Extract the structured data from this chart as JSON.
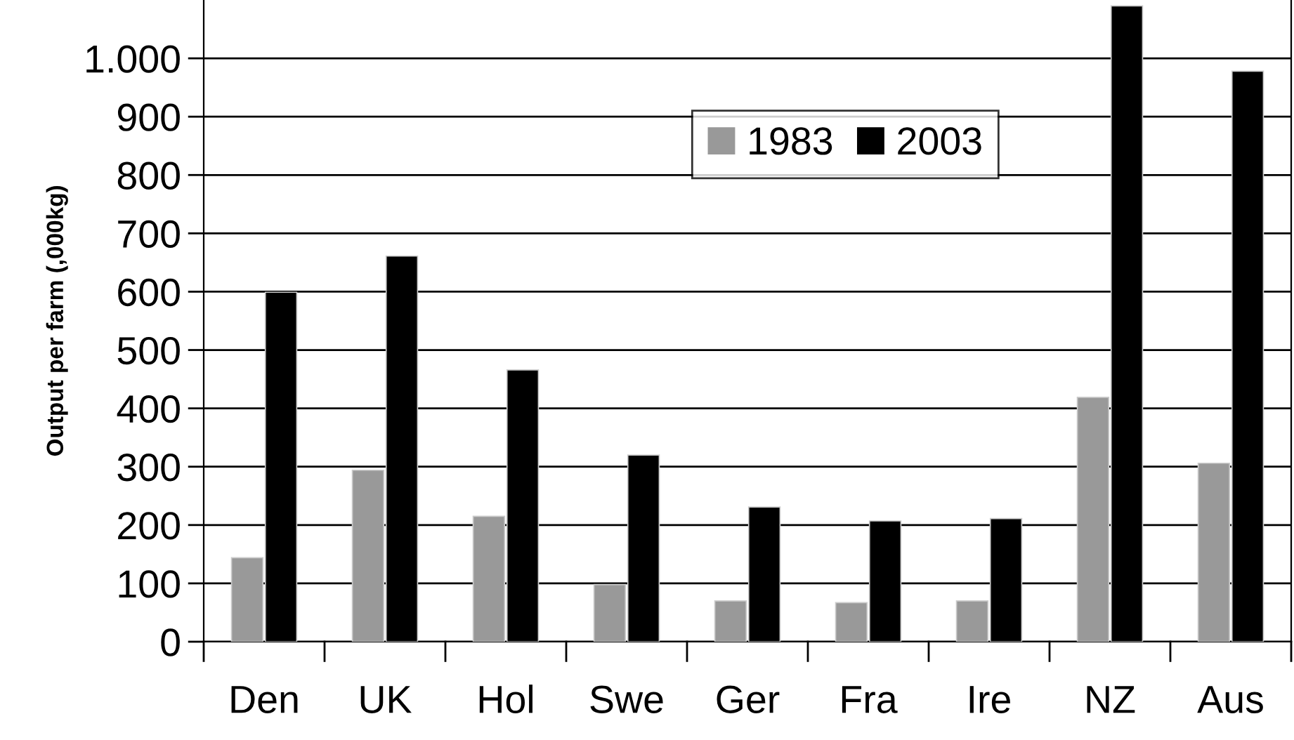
{
  "chart_data": {
    "type": "bar",
    "ylabel": "Output per farm (,000kg)",
    "categories": [
      "Den",
      "UK",
      "Hol",
      "Swe",
      "Ger",
      "Fra",
      "Ire",
      "NZ",
      "Aus"
    ],
    "series": [
      {
        "name": "1983",
        "color": "#999999",
        "values": [
          144,
          294,
          215,
          98,
          70,
          67,
          70,
          419,
          306
        ]
      },
      {
        "name": "2003",
        "color": "#000000",
        "values": [
          599,
          661,
          466,
          320,
          231,
          207,
          211,
          1090,
          978
        ]
      }
    ],
    "ylim": [
      0,
      1100
    ],
    "yticks": [
      0,
      100,
      200,
      300,
      400,
      500,
      600,
      700,
      800,
      900,
      {
        "value": 1000,
        "label": "1.000"
      }
    ],
    "grid": "y",
    "legend": "top"
  }
}
